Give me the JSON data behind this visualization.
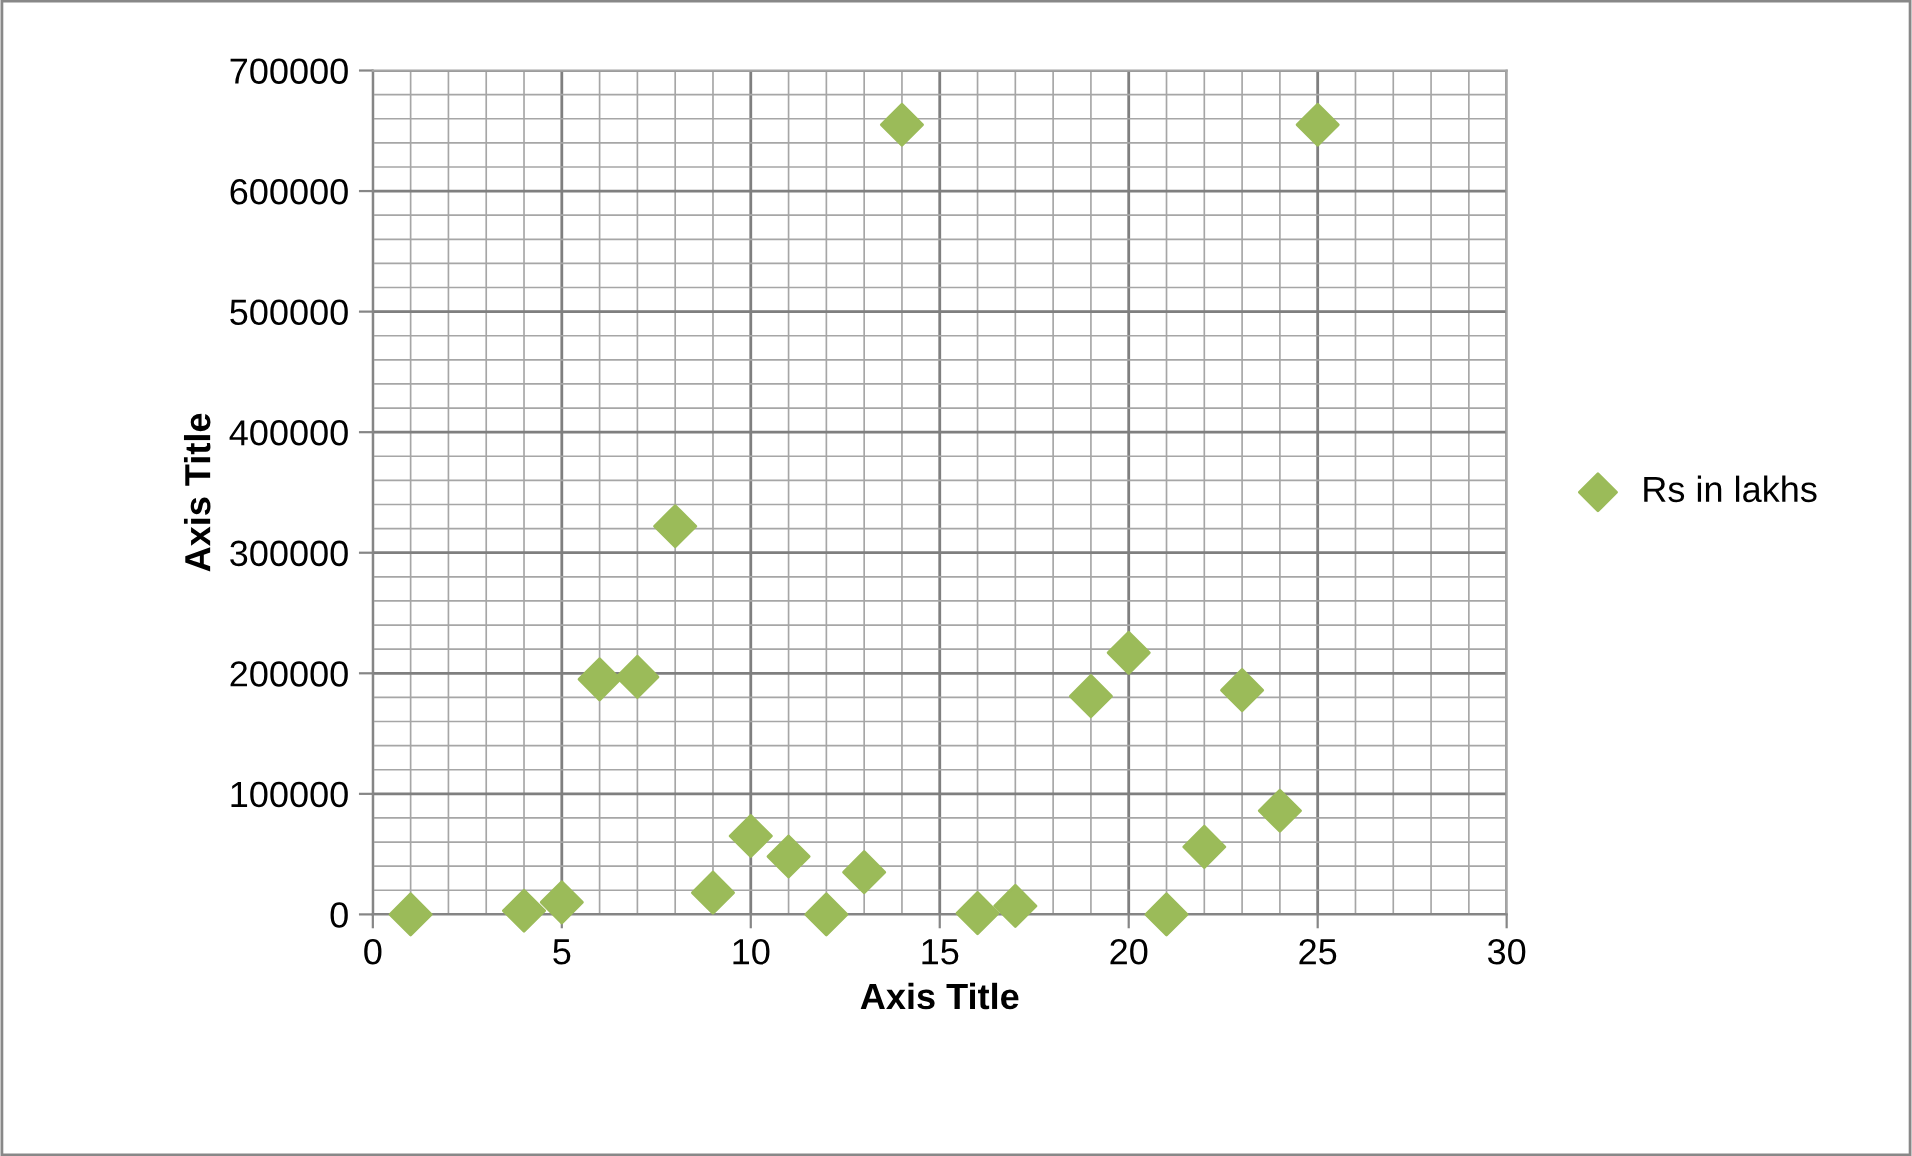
{
  "chart_data": {
    "type": "scatter",
    "xlabel": "Axis Title",
    "ylabel": "Axis Title",
    "x": [
      1,
      4,
      5,
      6,
      7,
      8,
      9,
      10,
      11,
      12,
      13,
      14,
      16,
      17,
      19,
      20,
      21,
      22,
      23,
      24,
      25
    ],
    "series": [
      {
        "name": "Rs in lakhs",
        "color": "#9bbb59",
        "values": [
          0,
          3000,
          10000,
          195000,
          197000,
          322000,
          18000,
          65000,
          48000,
          0,
          35000,
          655000,
          1000,
          7000,
          181000,
          217000,
          0,
          56000,
          186000,
          86000,
          655000
        ]
      }
    ],
    "xlim": [
      0,
      30
    ],
    "xticks": [
      0,
      5,
      10,
      15,
      20,
      25,
      30
    ],
    "ylim": [
      0,
      700000
    ],
    "yticks": [
      0,
      100000,
      200000,
      300000,
      400000,
      500000,
      600000,
      700000
    ],
    "grid": true,
    "legend": "right",
    "marker": "diamond"
  }
}
